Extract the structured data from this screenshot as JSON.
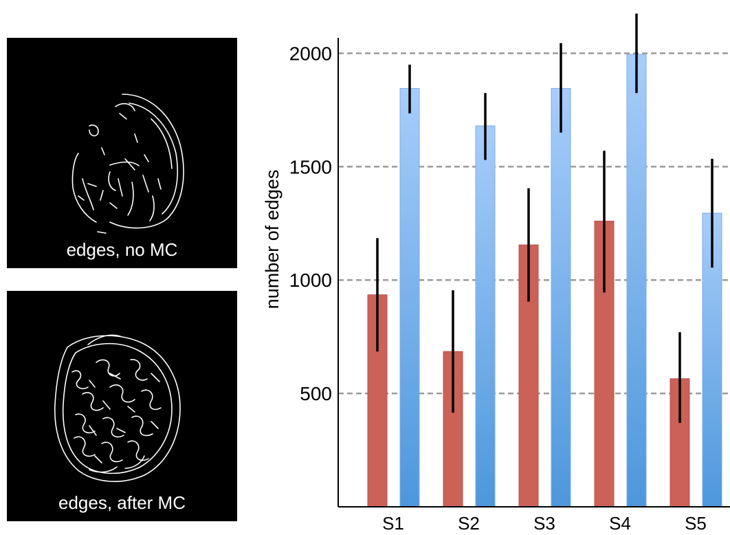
{
  "panels": {
    "top_caption": "edges, no MC",
    "bottom_caption": "edges, after MC"
  },
  "chart_data": {
    "type": "bar",
    "title": "",
    "xlabel": "",
    "ylabel": "number of edges",
    "categories": [
      "S1",
      "S2",
      "S3",
      "S4",
      "S5"
    ],
    "yticks": [
      500,
      1000,
      1500,
      2000
    ],
    "ylim": [
      0,
      2000
    ],
    "grid": true,
    "series": [
      {
        "color": "#cc6158",
        "values": [
          935,
          685,
          1155,
          1260,
          565
        ],
        "error_low": [
          685,
          415,
          905,
          945,
          370
        ],
        "error_high": [
          1185,
          955,
          1405,
          1570,
          770
        ]
      },
      {
        "color": "#4d97dc",
        "values": [
          1845,
          1680,
          1845,
          1995,
          1295
        ],
        "error_low": [
          1735,
          1530,
          1650,
          1825,
          1055
        ],
        "error_high": [
          1950,
          1825,
          2045,
          2175,
          1535
        ]
      }
    ]
  }
}
